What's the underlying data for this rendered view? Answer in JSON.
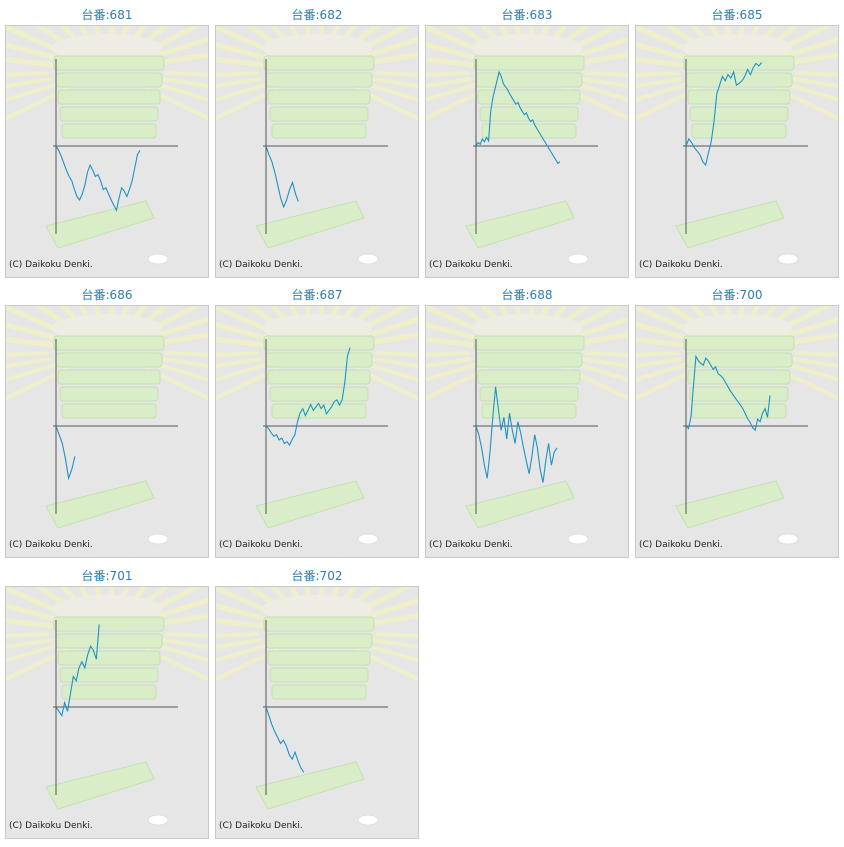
{
  "copyright": "(C) Daikoku Denki.",
  "colors": {
    "line": "#1d93c6",
    "axis": "#555555",
    "title": "#2a7fb0",
    "panel": "#e6e6e6"
  },
  "chart_data": [
    {
      "type": "line",
      "title": "台番:681",
      "values": [
        0,
        -5,
        -12,
        -20,
        -28,
        -35,
        -40,
        -50,
        -58,
        -62,
        -55,
        -45,
        -30,
        -22,
        -28,
        -35,
        -33,
        -40,
        -50,
        -48,
        -55,
        -62,
        -68,
        -74,
        -60,
        -48,
        -52,
        -58,
        -50,
        -40,
        -25,
        -10,
        -5
      ]
    },
    {
      "type": "line",
      "title": "台番:682",
      "values": [
        0,
        -10,
        -18,
        -30,
        -45,
        -60,
        -70,
        -62,
        -50,
        -42,
        -55,
        -64
      ]
    },
    {
      "type": "line",
      "title": "台番:683",
      "values": [
        0,
        4,
        2,
        8,
        5,
        10,
        6,
        40,
        55,
        65,
        75,
        85,
        80,
        72,
        68,
        65,
        60,
        56,
        52,
        48,
        50,
        44,
        40,
        36,
        38,
        32,
        28,
        30,
        24,
        20,
        16,
        12,
        8,
        4,
        0,
        -4,
        -8,
        -12,
        -16,
        -20,
        -18
      ]
    },
    {
      "type": "line",
      "title": "台番:685",
      "values": [
        0,
        8,
        4,
        -2,
        -6,
        -10,
        -18,
        -22,
        -8,
        5,
        28,
        60,
        70,
        80,
        75,
        82,
        78,
        85,
        70,
        72,
        75,
        80,
        88,
        82,
        90,
        95,
        92,
        96
      ]
    },
    {
      "type": "line",
      "title": "台番:686",
      "values": [
        0,
        -10,
        -20,
        -38,
        -60,
        -50,
        -35
      ]
    },
    {
      "type": "line",
      "title": "台番:687",
      "values": [
        0,
        -3,
        -8,
        -12,
        -10,
        -16,
        -14,
        -20,
        -18,
        -22,
        -15,
        -10,
        5,
        15,
        20,
        12,
        18,
        25,
        18,
        22,
        26,
        20,
        24,
        14,
        18,
        22,
        28,
        30,
        24,
        30,
        50,
        80,
        90
      ]
    },
    {
      "type": "line",
      "title": "台番:688",
      "values": [
        0,
        -10,
        -25,
        -45,
        -60,
        -30,
        10,
        45,
        20,
        -5,
        10,
        -15,
        15,
        -5,
        -20,
        5,
        -8,
        -25,
        -40,
        -55,
        -35,
        -10,
        -25,
        -50,
        -65,
        -40,
        -20,
        -45,
        -30,
        -25
      ]
    },
    {
      "type": "line",
      "title": "台番:700",
      "values": [
        0,
        -3,
        10,
        45,
        80,
        75,
        72,
        70,
        78,
        75,
        70,
        65,
        68,
        60,
        58,
        55,
        50,
        45,
        40,
        36,
        32,
        28,
        24,
        20,
        14,
        8,
        4,
        -2,
        -5,
        8,
        5,
        15,
        20,
        10,
        35
      ]
    },
    {
      "type": "line",
      "title": "台番:701",
      "values": [
        0,
        -5,
        -10,
        5,
        -5,
        15,
        35,
        30,
        45,
        52,
        45,
        60,
        70,
        65,
        55,
        95
      ]
    },
    {
      "type": "line",
      "title": "台番:702",
      "values": [
        0,
        -10,
        -20,
        -28,
        -35,
        -42,
        -38,
        -45,
        -55,
        -60,
        -52,
        -62,
        -70,
        -75
      ]
    }
  ]
}
